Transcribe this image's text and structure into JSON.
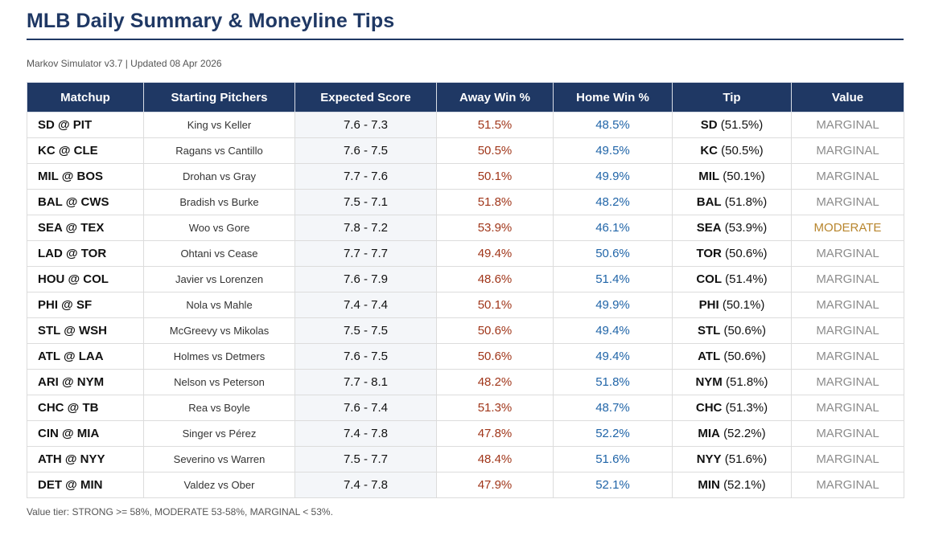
{
  "title": "MLB Daily Summary & Moneyline Tips",
  "subtitle": "Markov Simulator v3.7 | Updated 08 Apr 2026",
  "columns": [
    "Matchup",
    "Starting Pitchers",
    "Expected Score",
    "Away Win %",
    "Home Win %",
    "Tip",
    "Value"
  ],
  "colors": {
    "header_bg": "#1f3864",
    "away": "#a0361a",
    "home": "#2165a8",
    "marginal": "#8c8c8c",
    "moderate": "#b8862e"
  },
  "rows": [
    {
      "matchup": "SD @ PIT",
      "pitchers": "King vs Keller",
      "score": "7.6 - 7.3",
      "away": "51.5%",
      "home": "48.5%",
      "tip_team": "SD",
      "tip_pct": "(51.5%)",
      "value": "MARGINAL"
    },
    {
      "matchup": "KC @ CLE",
      "pitchers": "Ragans vs Cantillo",
      "score": "7.6 - 7.5",
      "away": "50.5%",
      "home": "49.5%",
      "tip_team": "KC",
      "tip_pct": "(50.5%)",
      "value": "MARGINAL"
    },
    {
      "matchup": "MIL @ BOS",
      "pitchers": "Drohan vs Gray",
      "score": "7.7 - 7.6",
      "away": "50.1%",
      "home": "49.9%",
      "tip_team": "MIL",
      "tip_pct": "(50.1%)",
      "value": "MARGINAL"
    },
    {
      "matchup": "BAL @ CWS",
      "pitchers": "Bradish vs Burke",
      "score": "7.5 - 7.1",
      "away": "51.8%",
      "home": "48.2%",
      "tip_team": "BAL",
      "tip_pct": "(51.8%)",
      "value": "MARGINAL"
    },
    {
      "matchup": "SEA @ TEX",
      "pitchers": "Woo vs Gore",
      "score": "7.8 - 7.2",
      "away": "53.9%",
      "home": "46.1%",
      "tip_team": "SEA",
      "tip_pct": "(53.9%)",
      "value": "MODERATE"
    },
    {
      "matchup": "LAD @ TOR",
      "pitchers": "Ohtani vs Cease",
      "score": "7.7 - 7.7",
      "away": "49.4%",
      "home": "50.6%",
      "tip_team": "TOR",
      "tip_pct": "(50.6%)",
      "value": "MARGINAL"
    },
    {
      "matchup": "HOU @ COL",
      "pitchers": "Javier vs Lorenzen",
      "score": "7.6 - 7.9",
      "away": "48.6%",
      "home": "51.4%",
      "tip_team": "COL",
      "tip_pct": "(51.4%)",
      "value": "MARGINAL"
    },
    {
      "matchup": "PHI @ SF",
      "pitchers": "Nola vs Mahle",
      "score": "7.4 - 7.4",
      "away": "50.1%",
      "home": "49.9%",
      "tip_team": "PHI",
      "tip_pct": "(50.1%)",
      "value": "MARGINAL"
    },
    {
      "matchup": "STL @ WSH",
      "pitchers": "McGreevy vs Mikolas",
      "score": "7.5 - 7.5",
      "away": "50.6%",
      "home": "49.4%",
      "tip_team": "STL",
      "tip_pct": "(50.6%)",
      "value": "MARGINAL"
    },
    {
      "matchup": "ATL @ LAA",
      "pitchers": "Holmes vs Detmers",
      "score": "7.6 - 7.5",
      "away": "50.6%",
      "home": "49.4%",
      "tip_team": "ATL",
      "tip_pct": "(50.6%)",
      "value": "MARGINAL"
    },
    {
      "matchup": "ARI @ NYM",
      "pitchers": "Nelson vs Peterson",
      "score": "7.7 - 8.1",
      "away": "48.2%",
      "home": "51.8%",
      "tip_team": "NYM",
      "tip_pct": "(51.8%)",
      "value": "MARGINAL"
    },
    {
      "matchup": "CHC @ TB",
      "pitchers": "Rea vs Boyle",
      "score": "7.6 - 7.4",
      "away": "51.3%",
      "home": "48.7%",
      "tip_team": "CHC",
      "tip_pct": "(51.3%)",
      "value": "MARGINAL"
    },
    {
      "matchup": "CIN @ MIA",
      "pitchers": "Singer vs Pérez",
      "score": "7.4 - 7.8",
      "away": "47.8%",
      "home": "52.2%",
      "tip_team": "MIA",
      "tip_pct": "(52.2%)",
      "value": "MARGINAL"
    },
    {
      "matchup": "ATH @ NYY",
      "pitchers": "Severino vs Warren",
      "score": "7.5 - 7.7",
      "away": "48.4%",
      "home": "51.6%",
      "tip_team": "NYY",
      "tip_pct": "(51.6%)",
      "value": "MARGINAL"
    },
    {
      "matchup": "DET @ MIN",
      "pitchers": "Valdez vs Ober",
      "score": "7.4 - 7.8",
      "away": "47.9%",
      "home": "52.1%",
      "tip_team": "MIN",
      "tip_pct": "(52.1%)",
      "value": "MARGINAL"
    }
  ],
  "footnote": "Value tier: STRONG >= 58%, MODERATE 53-58%, MARGINAL < 53%."
}
